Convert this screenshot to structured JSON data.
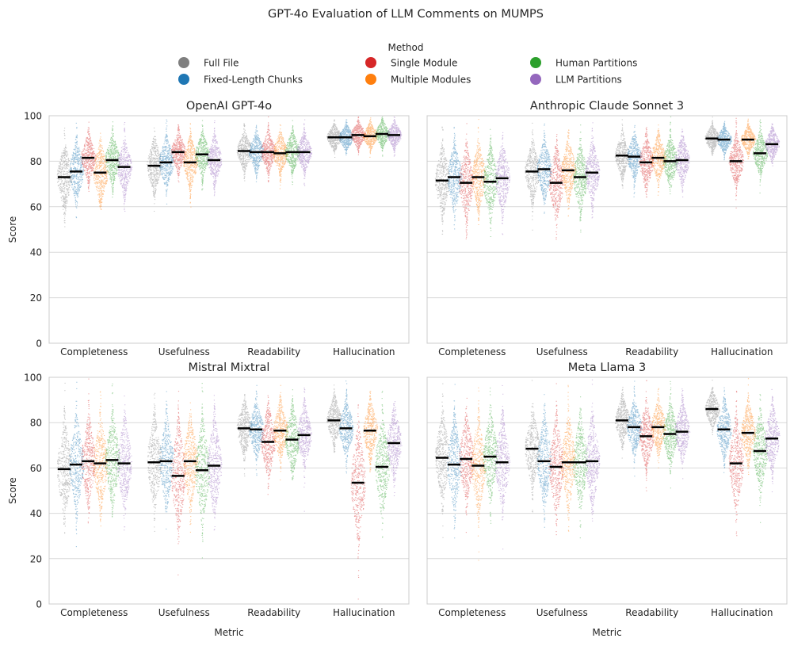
{
  "title": "GPT-4o Evaluation of LLM Comments on MUMPS",
  "legend": {
    "title": "Method",
    "entries": [
      {
        "name": "Full File",
        "color": "#7f7f7f"
      },
      {
        "name": "Single Module",
        "color": "#d62728"
      },
      {
        "name": "Human Partitions",
        "color": "#2ca02c"
      },
      {
        "name": "Fixed-Length Chunks",
        "color": "#1f77b4"
      },
      {
        "name": "Multiple Modules",
        "color": "#ff7f0e"
      },
      {
        "name": "LLM Partitions",
        "color": "#9467bd"
      }
    ]
  },
  "chart_data": {
    "type": "swarm",
    "ylabel": "Score",
    "xlabel": "Metric",
    "ylim": [
      0,
      100
    ],
    "yticks": [
      0,
      20,
      40,
      60,
      80,
      100
    ],
    "categories": [
      "Completeness",
      "Usefulness",
      "Readability",
      "Hallucination"
    ],
    "method_order": [
      "Full File",
      "Fixed-Length Chunks",
      "Single Module",
      "Multiple Modules",
      "Human Partitions",
      "LLM Partitions"
    ],
    "method_colors": [
      "#7f7f7f",
      "#1f77b4",
      "#d62728",
      "#ff7f0e",
      "#2ca02c",
      "#9467bd"
    ],
    "panels": [
      {
        "title": "OpenAI GPT-4o",
        "means": [
          [
            73,
            75.5,
            81.5,
            75,
            80.5,
            77.5
          ],
          [
            78,
            79.5,
            84,
            79.5,
            83,
            80.5
          ],
          [
            84.5,
            84,
            84,
            83.5,
            84,
            84
          ],
          [
            90.5,
            90.5,
            91.5,
            91,
            92,
            91.5
          ]
        ]
      },
      {
        "title": "Anthropic Claude Sonnet 3",
        "means": [
          [
            71.5,
            73,
            70.5,
            73,
            71,
            72.5
          ],
          [
            75.5,
            76.5,
            70.5,
            76,
            73,
            75
          ],
          [
            82.5,
            82,
            79.5,
            81.5,
            80,
            80.5
          ],
          [
            90,
            89.5,
            80,
            89.5,
            83.5,
            87.5
          ]
        ]
      },
      {
        "title": "Mistral Mixtral",
        "means": [
          [
            59.5,
            61.5,
            63,
            62,
            63.5,
            62
          ],
          [
            62.5,
            63,
            56.5,
            63,
            59,
            61
          ],
          [
            77.5,
            77,
            71.5,
            76.5,
            72.5,
            74.5
          ],
          [
            81,
            77.5,
            53.5,
            76.5,
            60.5,
            71
          ]
        ]
      },
      {
        "title": "Meta Llama 3",
        "means": [
          [
            64.5,
            61.5,
            64,
            61,
            65,
            62.5
          ],
          [
            68.5,
            63,
            60.5,
            62.5,
            62.5,
            63
          ],
          [
            81,
            78,
            74,
            78,
            75,
            76
          ],
          [
            86,
            77,
            62,
            75.5,
            67.5,
            73
          ]
        ]
      }
    ]
  }
}
